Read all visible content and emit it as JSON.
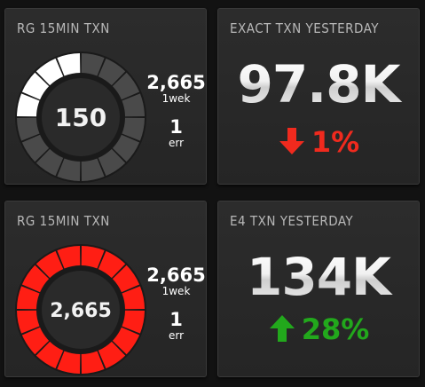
{
  "tiles": [
    {
      "title": "RG 15MIN TXN",
      "gauge_value": "150",
      "gauge_fill_fraction": 0.25,
      "gauge_fill_color": "#ffffff",
      "gauge_track_color": "#4a4a4a",
      "stat1_value": "2,665",
      "stat1_label": "1wek",
      "stat2_value": "1",
      "stat2_label": "err"
    },
    {
      "title": "EXACT TXN YESTERDAY",
      "value": "97.8K",
      "delta": "1%",
      "direction": "down",
      "delta_color": "#f02a1e",
      "icon": "arrow-down-icon"
    },
    {
      "title": "RG 15MIN TXN",
      "gauge_value": "2,665",
      "gauge_fill_fraction": 1.0,
      "gauge_fill_color": "#ff1e14",
      "gauge_track_color": "#4a4a4a",
      "stat1_value": "2,665",
      "stat1_label": "1wek",
      "stat2_value": "1",
      "stat2_label": "err"
    },
    {
      "title": "E4 TXN YESTERDAY",
      "value": "134K",
      "delta": "28%",
      "direction": "up",
      "delta_color": "#22a81c",
      "icon": "arrow-up-icon"
    }
  ]
}
